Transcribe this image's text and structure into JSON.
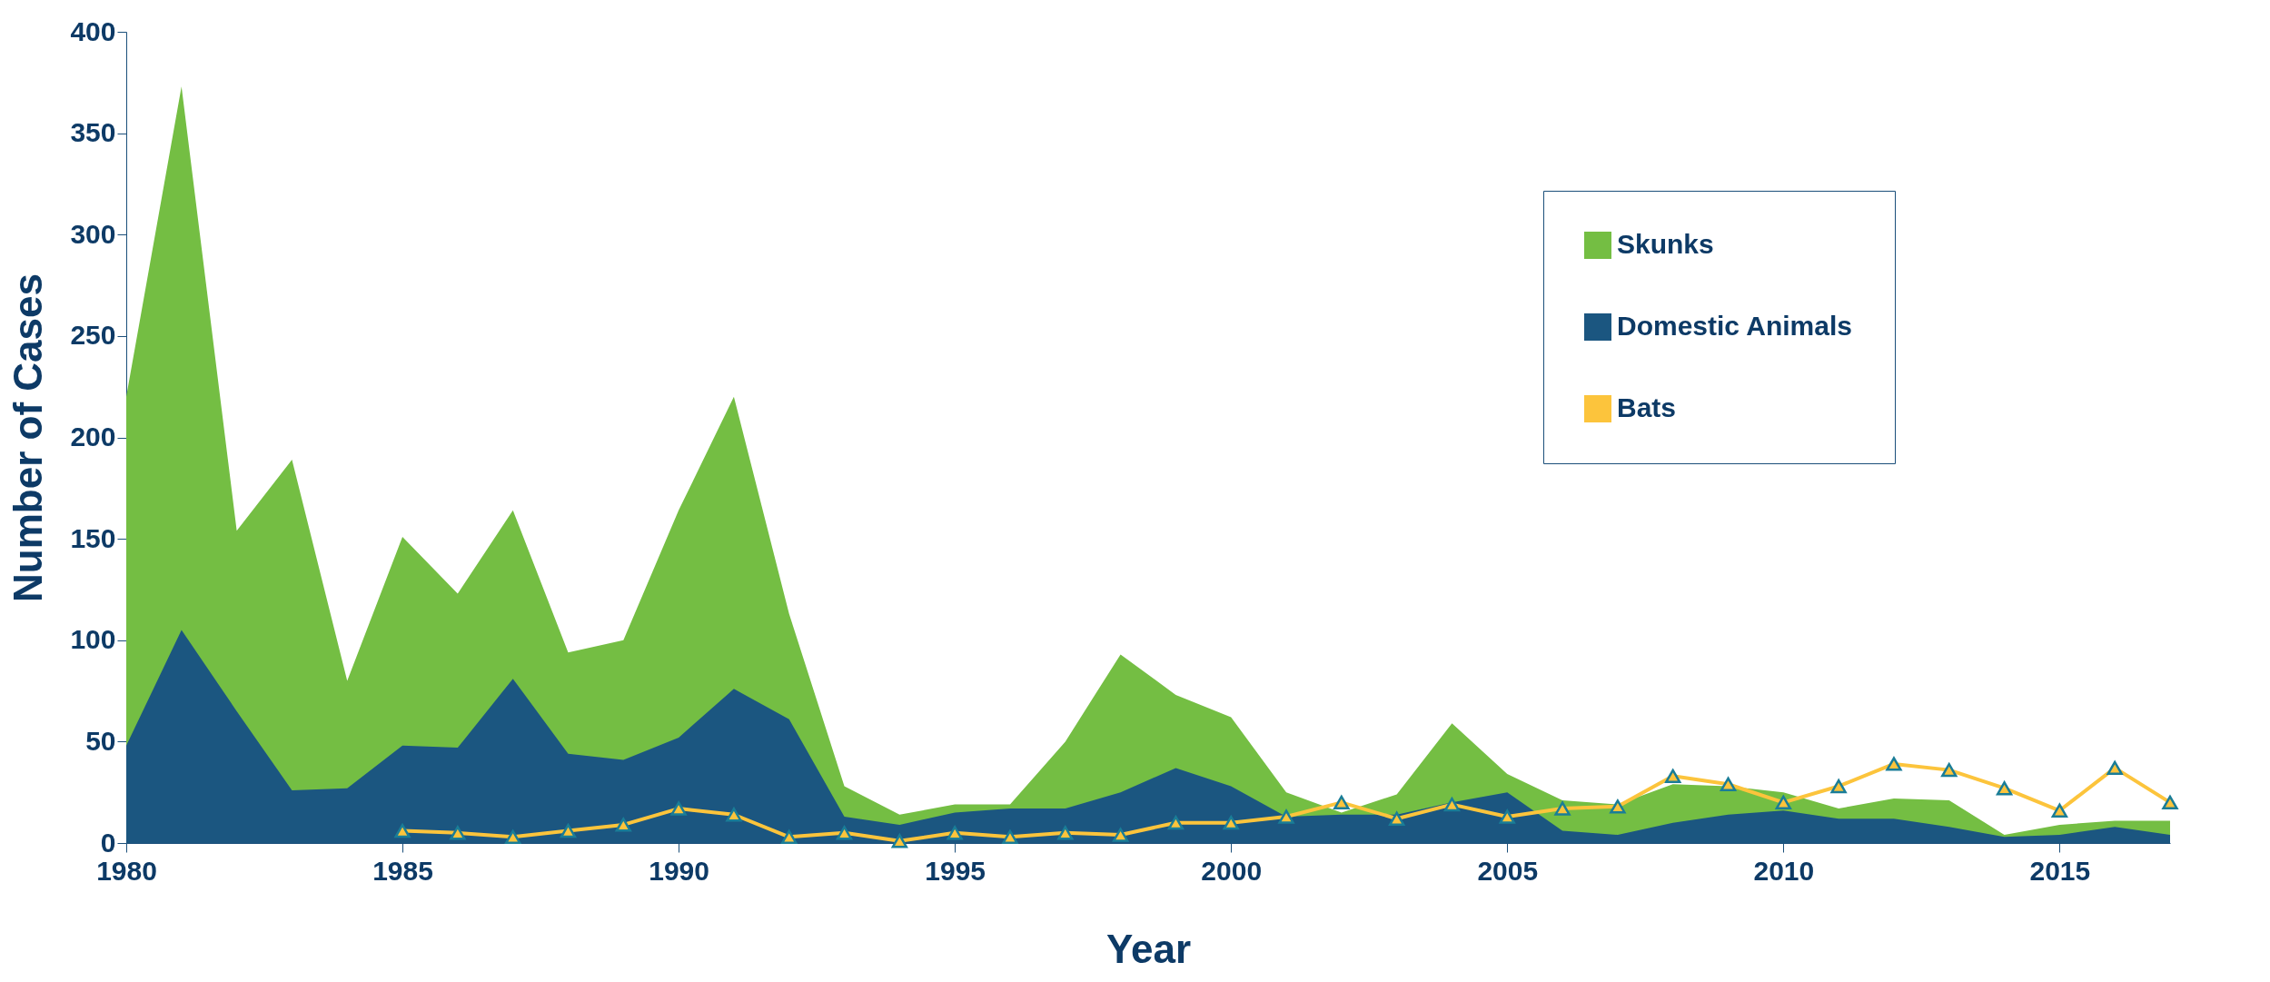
{
  "chart_data": {
    "type": "area",
    "xlabel": "Year",
    "ylabel": "Number of Cases",
    "x": [
      1980,
      1981,
      1982,
      1983,
      1984,
      1985,
      1986,
      1987,
      1988,
      1989,
      1990,
      1991,
      1992,
      1993,
      1994,
      1995,
      1996,
      1997,
      1998,
      1999,
      2000,
      2001,
      2002,
      2003,
      2004,
      2005,
      2006,
      2007,
      2008,
      2009,
      2010,
      2011,
      2012,
      2013,
      2014,
      2015,
      2016,
      2017
    ],
    "series": [
      {
        "name": "Skunks",
        "color": "#74be43",
        "values": [
          220,
          373,
          154,
          189,
          80,
          151,
          123,
          164,
          94,
          100,
          164,
          220,
          113,
          28,
          14,
          19,
          19,
          50,
          93,
          73,
          62,
          25,
          15,
          24,
          59,
          34,
          21,
          19,
          29,
          28,
          25,
          17,
          22,
          21,
          4,
          9,
          11,
          11
        ]
      },
      {
        "name": "Domestic Animals",
        "color": "#1b5680",
        "values": [
          48,
          105,
          65,
          26,
          27,
          48,
          47,
          81,
          44,
          41,
          52,
          76,
          61,
          13,
          9,
          15,
          17,
          17,
          25,
          37,
          28,
          13,
          14,
          14,
          20,
          25,
          6,
          4,
          10,
          14,
          16,
          12,
          12,
          8,
          3,
          4,
          8,
          4
        ]
      },
      {
        "name": "Bats",
        "type": "line",
        "color": "#fcc43c",
        "marker": "triangle",
        "values": [
          null,
          null,
          null,
          null,
          null,
          6,
          5,
          3,
          6,
          9,
          17,
          14,
          3,
          5,
          1,
          5,
          3,
          5,
          4,
          10,
          10,
          13,
          20,
          12,
          19,
          13,
          17,
          18,
          33,
          29,
          20,
          28,
          39,
          36,
          27,
          16,
          37,
          20
        ]
      }
    ],
    "xlim": [
      1980,
      2017
    ],
    "xticks": [
      1980,
      1985,
      1990,
      1995,
      2000,
      2005,
      2010,
      2015
    ],
    "ylim": [
      0,
      400
    ],
    "yticks": [
      0,
      50,
      100,
      150,
      200,
      250,
      300,
      350,
      400
    ],
    "legend": "top right"
  }
}
